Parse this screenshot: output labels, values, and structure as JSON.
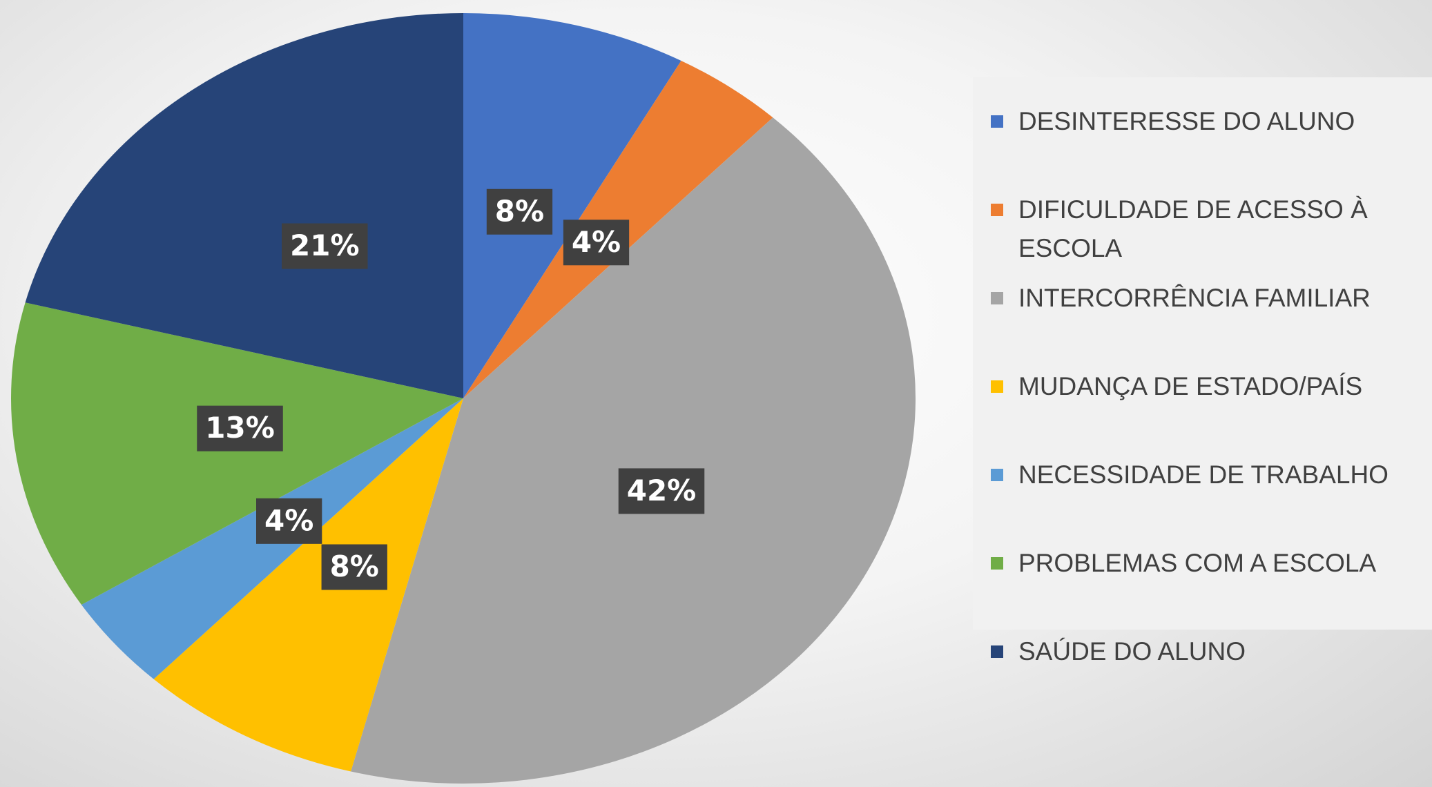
{
  "chart_data": {
    "type": "pie",
    "categories": [
      "DESINTERESSE DO ALUNO",
      "DIFICULDADE DE ACESSO À ESCOLA",
      "INTERCORRÊNCIA FAMILIAR",
      "MUDANÇA DE ESTADO/PAÍS",
      "NECESSIDADE DE TRABALHO",
      "PROBLEMAS COM A ESCOLA",
      "SAÚDE DO ALUNO"
    ],
    "values": [
      8,
      4,
      42,
      8,
      4,
      13,
      21
    ],
    "value_labels": [
      "8%",
      "4%",
      "42%",
      "8%",
      "4%",
      "13%",
      "21%"
    ],
    "colors": [
      "#4472c4",
      "#ed7d31",
      "#a5a5a5",
      "#ffc000",
      "#5b9bd5",
      "#70ad47",
      "#264478"
    ],
    "legend": "right"
  }
}
